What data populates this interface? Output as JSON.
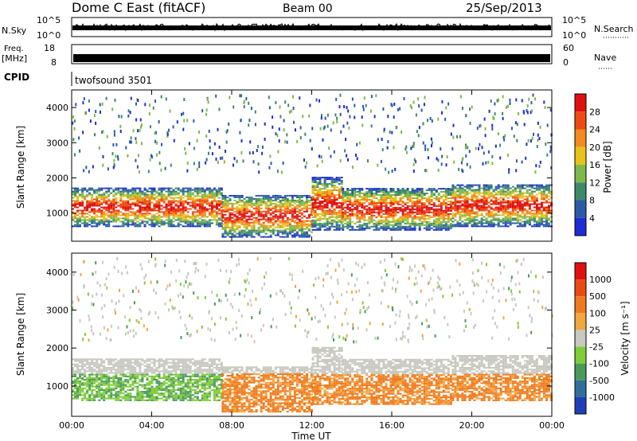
{
  "header": {
    "title": "Dome C East (fitACF)",
    "beam": "Beam 00",
    "date": "25/Sep/2013"
  },
  "top_panels": {
    "nsky_label": "N.Sky",
    "nsky_ticks": [
      "10^5",
      "10^0"
    ],
    "nsearch_label": "N.Search",
    "nsearch_ticks": [
      "10^5",
      "10^0"
    ],
    "freq_label": "Freq.",
    "freq_unit": "[MHz]",
    "freq_ticks": [
      "18",
      "8"
    ],
    "nave_label": "Nave",
    "nave_ticks": [
      "60",
      "0"
    ],
    "cpid_label": "CPID",
    "cpid_value": "twofsound 3501"
  },
  "chart_data": [
    {
      "type": "heatmap",
      "panel": "power",
      "ylabel": "Slant Range [km]",
      "yticks": [
        "1000",
        "2000",
        "3000",
        "4000"
      ],
      "ylim": [
        200,
        4500
      ],
      "xlim_hours": [
        0,
        24
      ],
      "colorbar_label": "Power [dB]",
      "colorbar_ticks": [
        "4",
        "8",
        "12",
        "16",
        "20",
        "24",
        "28"
      ],
      "colorbar_colors": [
        "#1f2bd6",
        "#2c5aa8",
        "#3d8a6a",
        "#7fb84a",
        "#e8c21a",
        "#f28a1d",
        "#ef4a16",
        "#e01010"
      ],
      "echo_bands": [
        {
          "t0": 0.0,
          "t1": 7.5,
          "r0": 600,
          "r1": 1700
        },
        {
          "t0": 7.5,
          "t1": 12.0,
          "r0": 300,
          "r1": 1500
        },
        {
          "t0": 12.0,
          "t1": 13.5,
          "r0": 500,
          "r1": 2000
        },
        {
          "t0": 13.5,
          "t1": 19.0,
          "r0": 500,
          "r1": 1700
        },
        {
          "t0": 19.0,
          "t1": 24.0,
          "r0": 600,
          "r1": 1800
        }
      ]
    },
    {
      "type": "heatmap",
      "panel": "velocity",
      "ylabel": "Slant Range [km]",
      "yticks": [
        "1000",
        "2000",
        "3000",
        "4000"
      ],
      "ylim": [
        200,
        4500
      ],
      "xlim_hours": [
        0,
        24
      ],
      "colorbar_label": "Velocity [m s⁻¹]",
      "colorbar_ticks": [
        "1000",
        "500",
        "100",
        "25",
        "-25",
        "-100",
        "-500",
        "-1000"
      ],
      "colorbar_colors": [
        "#1f3fb8",
        "#2f6f9a",
        "#4a9a5a",
        "#7fcc3a",
        "#c8c8c0",
        "#f2a640",
        "#f07a1e",
        "#ea4a14",
        "#e01010"
      ],
      "xticks": [
        "00:00",
        "04:00",
        "08:00",
        "12:00",
        "16:00",
        "20:00",
        "00:00"
      ],
      "xlabel": "Time UT"
    }
  ]
}
